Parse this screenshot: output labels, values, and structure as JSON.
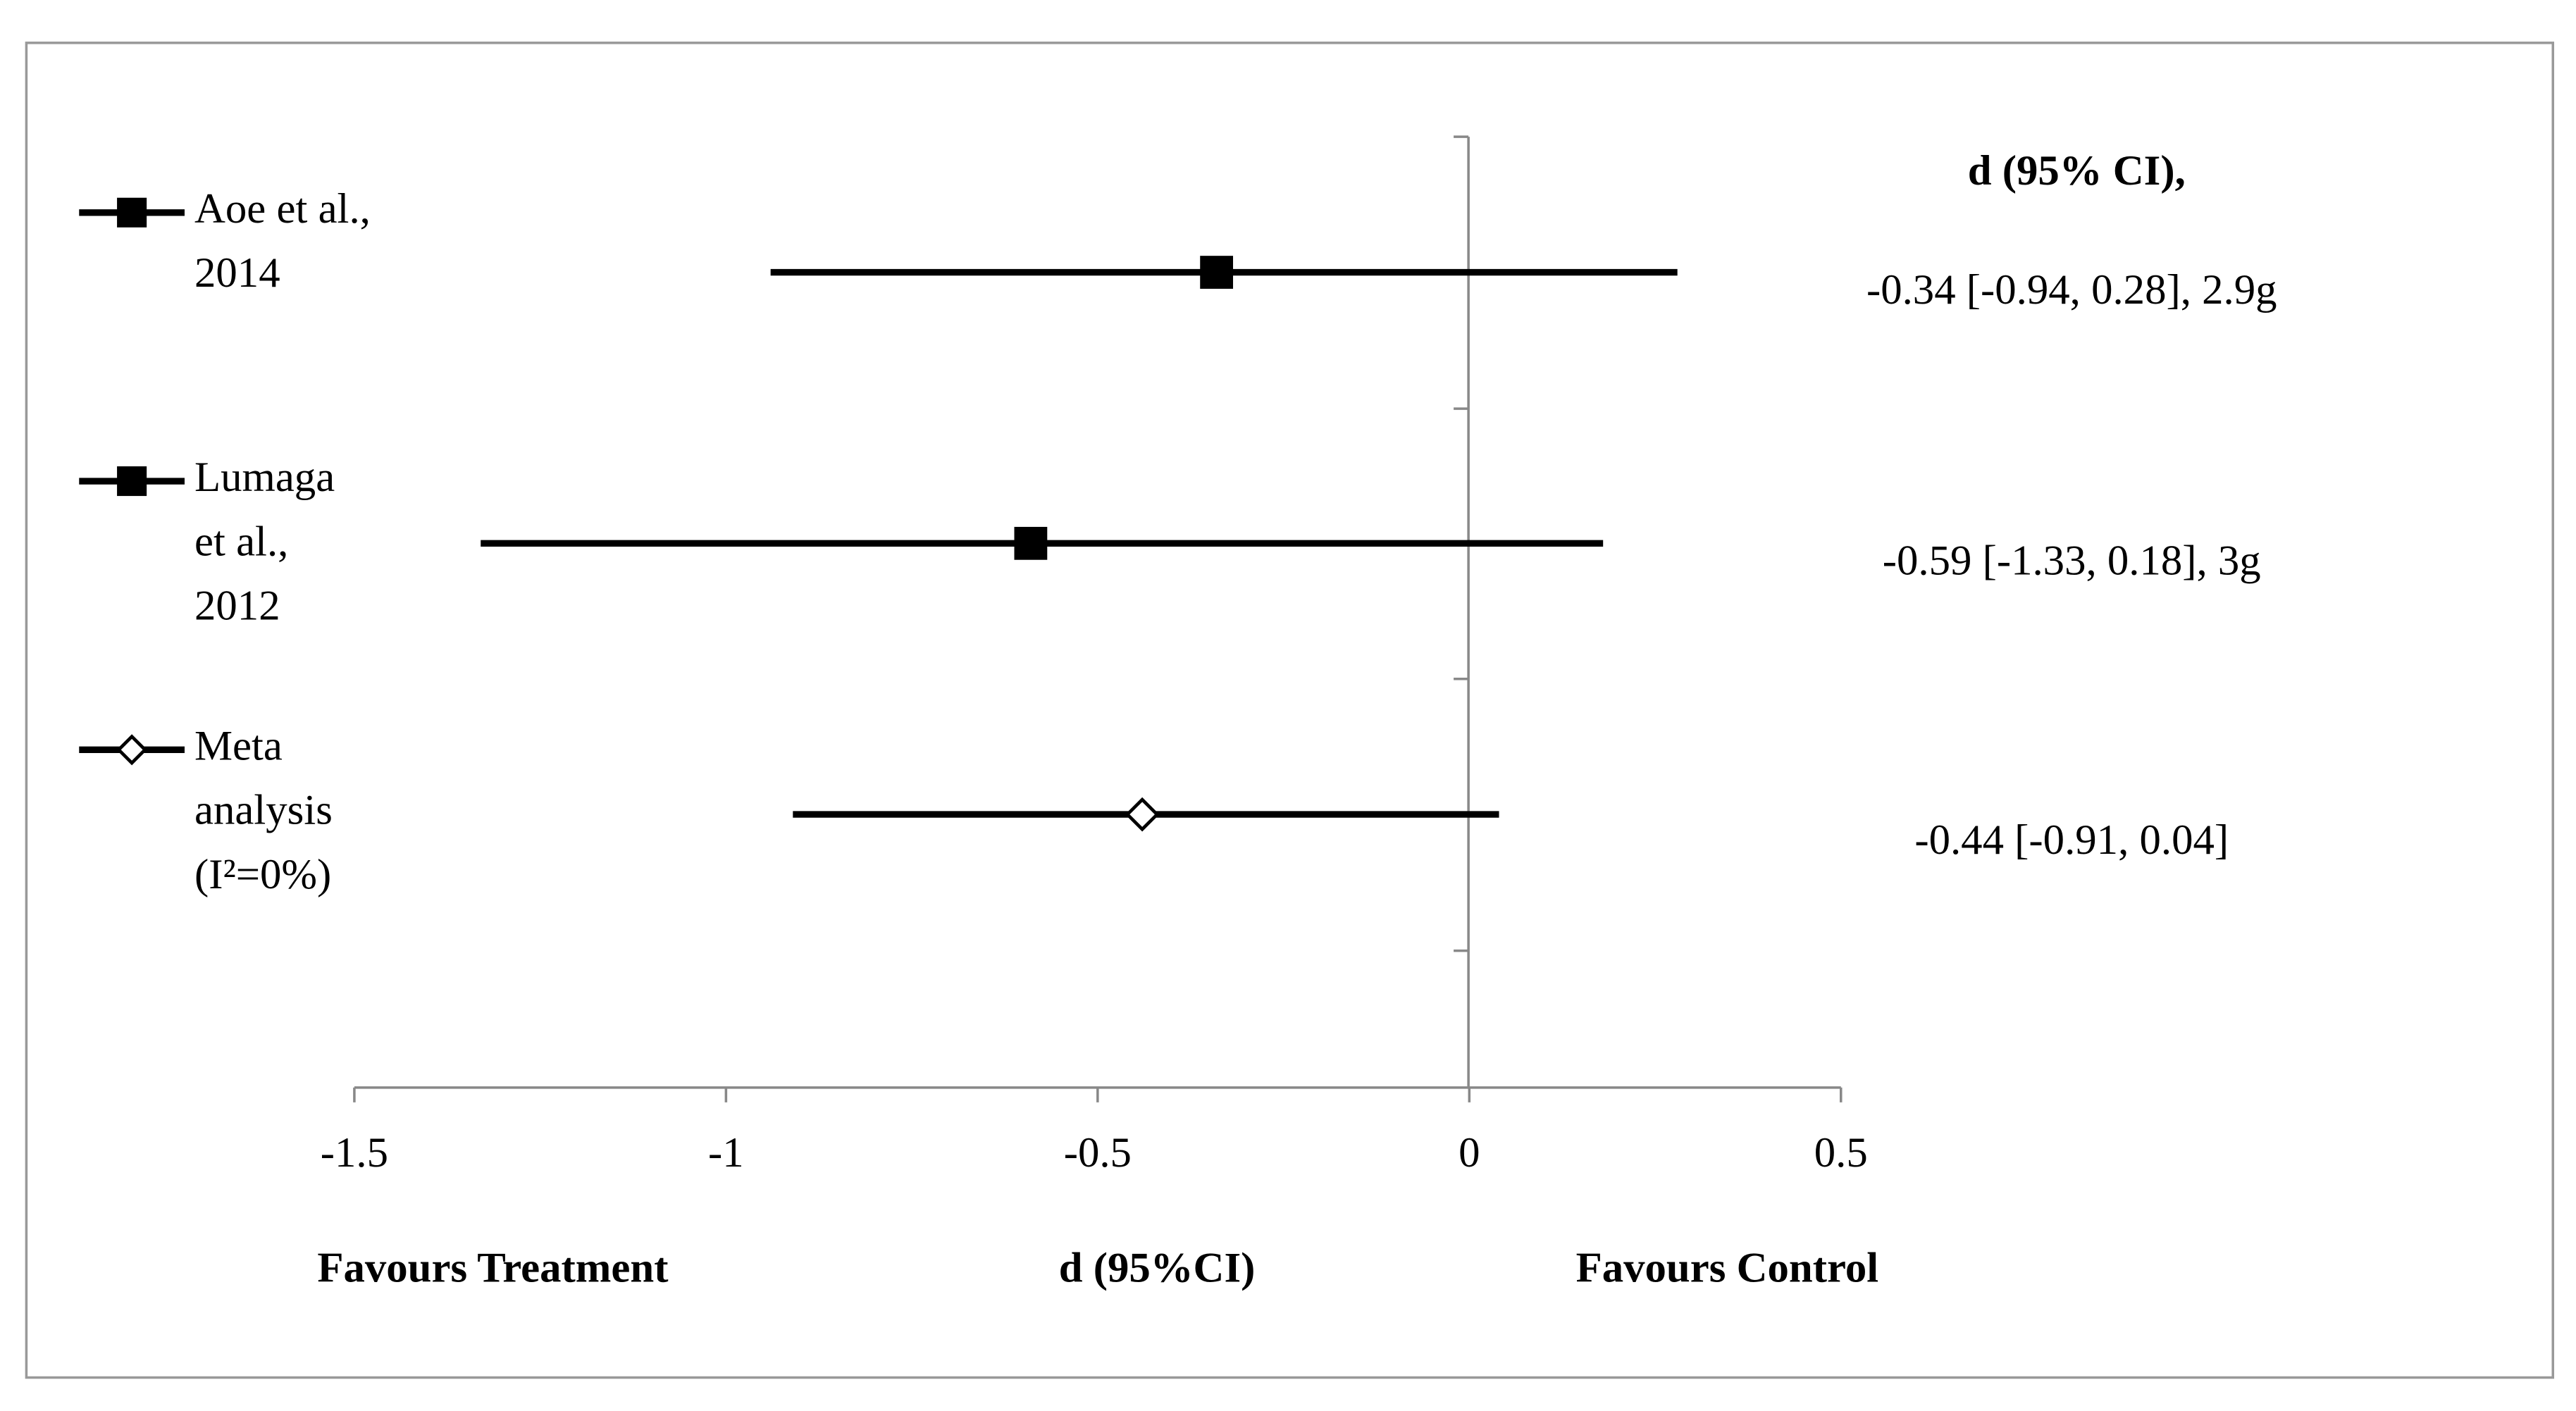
{
  "chart_data": {
    "type": "forest",
    "column_header": "d (95% CI),",
    "xlabel": "d (95%CI)",
    "left_annotation": "Favours Treatment",
    "right_annotation": "Favours Control",
    "xlim": [
      -1.5,
      0.5
    ],
    "xticks": [
      -1.5,
      -1,
      -0.5,
      0,
      0.5
    ],
    "color": "#000000",
    "series": [
      {
        "name": "Aoe et al., 2014",
        "marker": "square",
        "values": [
          -0.34
        ],
        "lower": [
          -0.94
        ],
        "upper": [
          0.28
        ],
        "value_labels": [
          "-0.34 [-0.94, 0.28], 2.9g"
        ]
      },
      {
        "name": "Lumaga et al., 2012",
        "marker": "square",
        "values": [
          -0.59
        ],
        "lower": [
          -1.33
        ],
        "upper": [
          0.18
        ],
        "value_labels": [
          "-0.59 [-1.33, 0.18], 3g"
        ]
      },
      {
        "name": "Meta analysis (I²=0%)",
        "marker": "diamond",
        "values": [
          -0.44
        ],
        "lower": [
          -0.91
        ],
        "upper": [
          0.04
        ],
        "value_labels": [
          "-0.44 [-0.91, 0.04]"
        ]
      }
    ]
  }
}
